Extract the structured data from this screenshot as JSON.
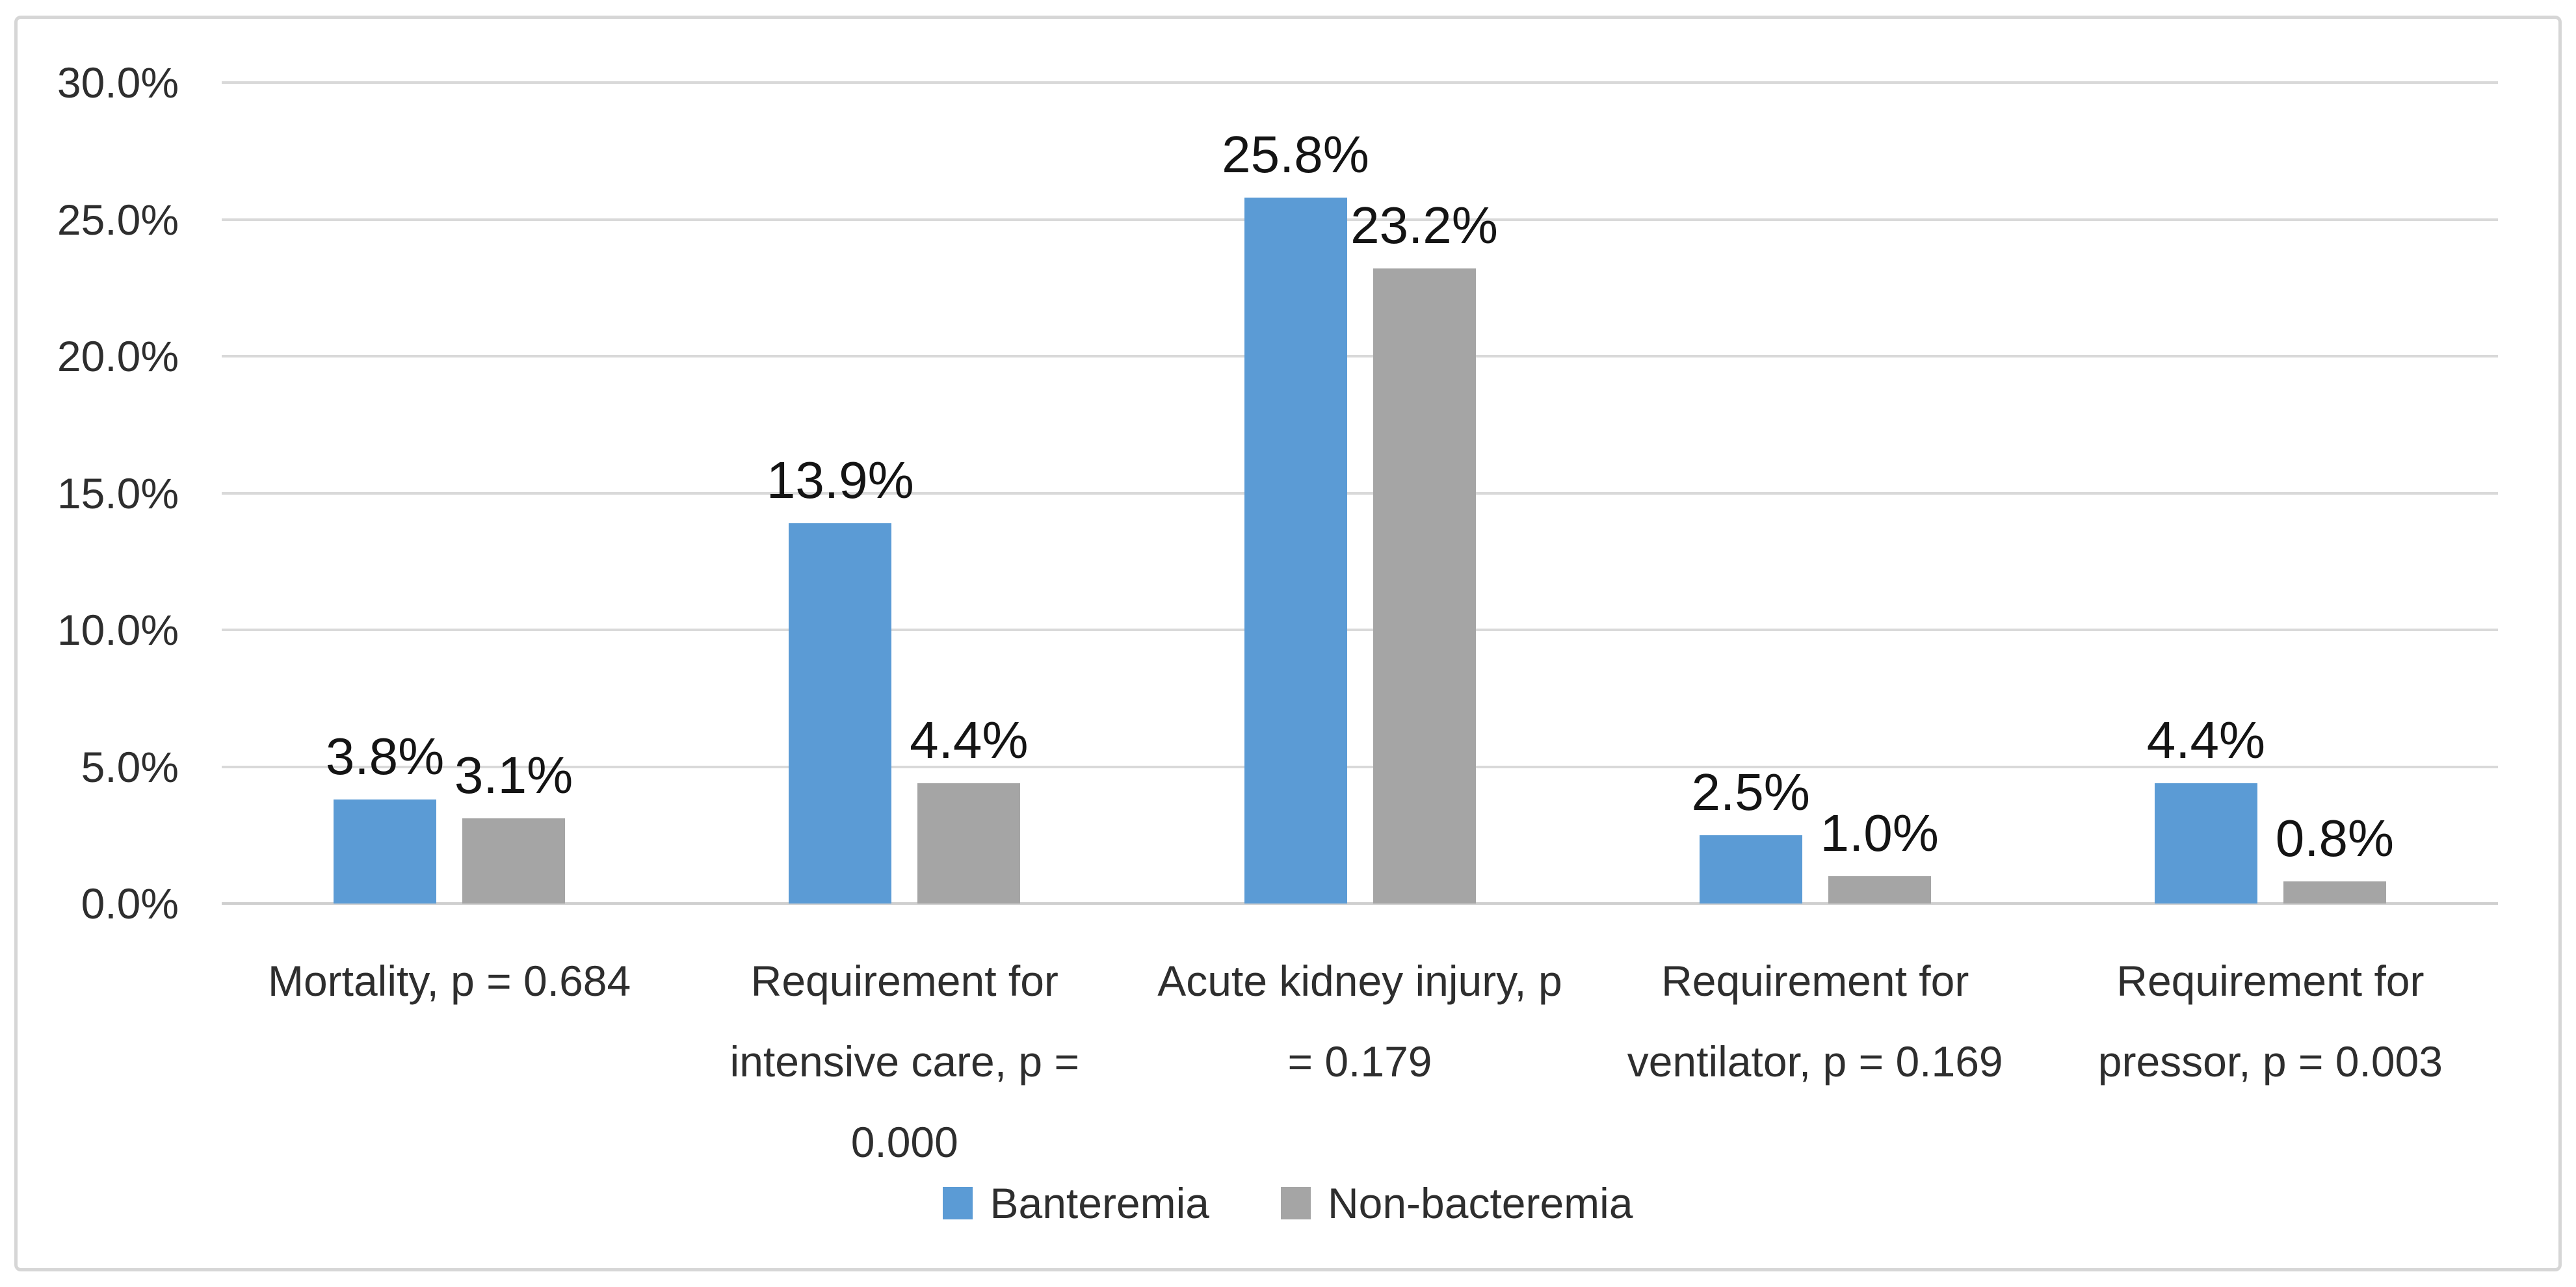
{
  "chart_data": {
    "type": "bar",
    "title": "",
    "xlabel": "",
    "ylabel": "",
    "grid": true,
    "legend_position": "bottom",
    "y_axis": {
      "min": 0,
      "max": 30,
      "step": 5,
      "tick_labels": [
        "0.0%",
        "5.0%",
        "10.0%",
        "15.0%",
        "20.0%",
        "25.0%",
        "30.0%"
      ]
    },
    "categories": [
      {
        "label": "Mortality, p = 0.684",
        "lines": [
          "Mortality, p = 0.684"
        ]
      },
      {
        "label": "Requirement for intensive care, p = 0.000",
        "lines": [
          "Requirement for",
          "intensive care, p =",
          "0.000"
        ]
      },
      {
        "label": "Acute kidney injury, p = 0.179",
        "lines": [
          "Acute kidney injury, p",
          "= 0.179"
        ]
      },
      {
        "label": "Requirement for ventilator, p = 0.169",
        "lines": [
          "Requirement for",
          "ventilator, p = 0.169"
        ]
      },
      {
        "label": "Requirement for pressor, p = 0.003",
        "lines": [
          "Requirement for",
          "pressor, p = 0.003"
        ]
      }
    ],
    "series": [
      {
        "name": "Banteremia",
        "color": "#5B9BD5",
        "values": [
          3.8,
          13.9,
          25.8,
          2.5,
          4.4
        ],
        "data_labels": [
          "3.8%",
          "13.9%",
          "25.8%",
          "2.5%",
          "4.4%"
        ]
      },
      {
        "name": "Non-bacteremia",
        "color": "#A5A5A5",
        "values": [
          3.1,
          4.4,
          23.2,
          1.0,
          0.8
        ],
        "data_labels": [
          "3.1%",
          "4.4%",
          "23.2%",
          "1.0%",
          "0.8%"
        ]
      }
    ]
  },
  "style_colors": {
    "gridline": "#d9d9d9",
    "axis_line": "#cfcfcf",
    "frame_border": "#d6d6d6",
    "tick_text": "#2e2e2e",
    "data_label_text": "#141414"
  }
}
